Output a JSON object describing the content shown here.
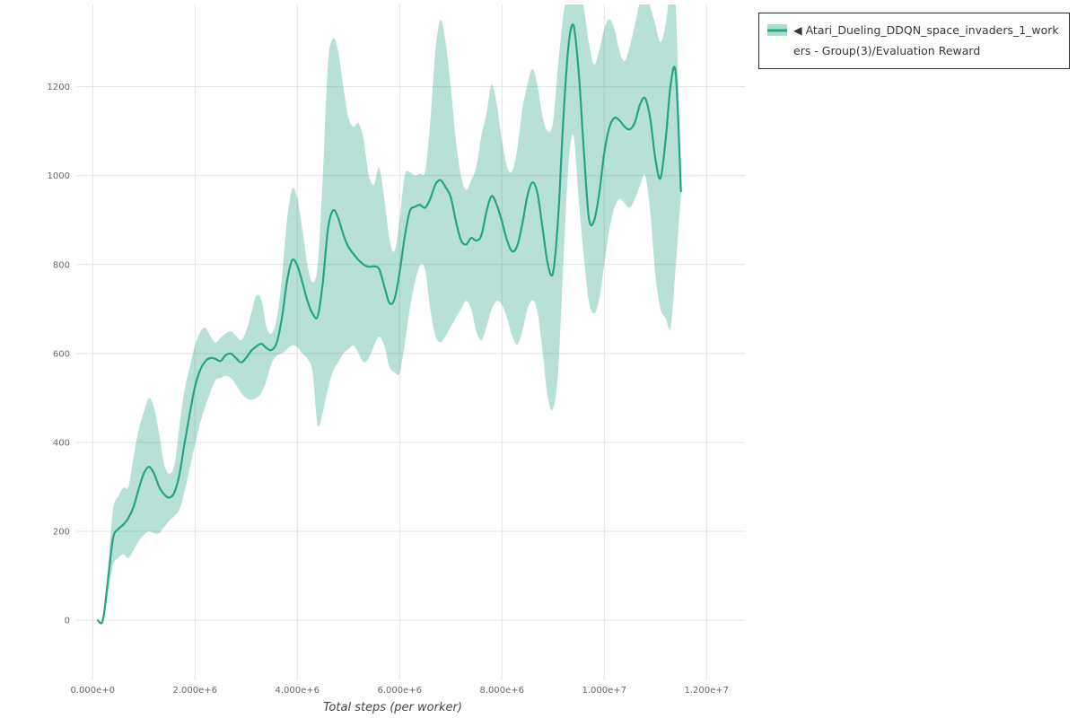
{
  "legend": {
    "label": "◀ Atari_Dueling_DDQN_space_invaders_1_workers - Group(3)/Evaluation Reward"
  },
  "colors": {
    "line": "#23a583",
    "band": "rgba(35,165,131,0.33)",
    "grid": "#e3e3e3",
    "tick_text": "#666666",
    "background": "#ffffff"
  },
  "chart_data": {
    "type": "line",
    "title": "",
    "xlabel": "Total steps (per worker)",
    "ylabel": "",
    "grid": true,
    "legend_position": "top-right",
    "x_unit": 1000000,
    "xlim": [
      -320000,
      12750000
    ],
    "ylim": [
      -135,
      1385
    ],
    "x_ticks": [
      0,
      2000000,
      4000000,
      6000000,
      8000000,
      10000000,
      12000000
    ],
    "x_tick_labels": [
      "0.000e+0",
      "2.000e+6",
      "4.000e+6",
      "6.000e+6",
      "8.000e+6",
      "1.000e+7",
      "1.200e+7"
    ],
    "y_ticks": [
      0,
      200,
      400,
      600,
      800,
      1000,
      1200
    ],
    "series": [
      {
        "name": "◀ Atari_Dueling_DDQN_space_invaders_1_workers - Group(3)/Evaluation Reward",
        "color": "#23a583",
        "band_color": "rgba(35,165,131,0.33)",
        "x_millions": [
          0.1,
          0.2,
          0.3,
          0.4,
          0.5,
          0.6,
          0.7,
          0.8,
          0.9,
          1.0,
          1.1,
          1.2,
          1.3,
          1.4,
          1.5,
          1.6,
          1.7,
          1.8,
          1.9,
          2.0,
          2.1,
          2.2,
          2.3,
          2.4,
          2.5,
          2.6,
          2.7,
          2.8,
          2.9,
          3.0,
          3.1,
          3.2,
          3.3,
          3.4,
          3.5,
          3.6,
          3.7,
          3.8,
          3.9,
          4.0,
          4.1,
          4.2,
          4.3,
          4.4,
          4.5,
          4.6,
          4.7,
          4.8,
          4.9,
          5.0,
          5.1,
          5.2,
          5.3,
          5.4,
          5.5,
          5.6,
          5.7,
          5.8,
          5.9,
          6.0,
          6.1,
          6.2,
          6.3,
          6.4,
          6.5,
          6.6,
          6.7,
          6.8,
          6.9,
          7.0,
          7.1,
          7.2,
          7.3,
          7.4,
          7.5,
          7.6,
          7.7,
          7.8,
          7.9,
          8.0,
          8.1,
          8.2,
          8.3,
          8.4,
          8.5,
          8.6,
          8.7,
          8.8,
          8.9,
          9.0,
          9.1,
          9.2,
          9.3,
          9.4,
          9.5,
          9.6,
          9.7,
          9.8,
          9.9,
          10.0,
          10.1,
          10.2,
          10.3,
          10.4,
          10.5,
          10.6,
          10.7,
          10.8,
          10.9,
          11.0,
          11.1,
          11.2,
          11.3,
          11.4,
          11.5
        ],
        "mean": [
          0,
          0,
          90,
          185,
          205,
          215,
          230,
          255,
          295,
          330,
          345,
          330,
          300,
          283,
          276,
          288,
          330,
          400,
          465,
          525,
          562,
          582,
          590,
          588,
          583,
          596,
          600,
          590,
          580,
          590,
          606,
          616,
          622,
          612,
          608,
          625,
          680,
          762,
          810,
          798,
          760,
          718,
          690,
          684,
          760,
          880,
          922,
          905,
          868,
          840,
          824,
          810,
          800,
          795,
          796,
          790,
          752,
          714,
          722,
          782,
          862,
          920,
          930,
          934,
          928,
          948,
          980,
          990,
          974,
          952,
          898,
          855,
          845,
          860,
          854,
          866,
          920,
          954,
          934,
          898,
          855,
          830,
          842,
          892,
          955,
          985,
          958,
          878,
          800,
          782,
          905,
          1125,
          1290,
          1338,
          1235,
          1060,
          905,
          898,
          958,
          1050,
          1108,
          1130,
          1124,
          1110,
          1104,
          1120,
          1160,
          1174,
          1128,
          1038,
          994,
          1080,
          1205,
          1228,
          965
        ],
        "lower": [
          0,
          0,
          60,
          125,
          140,
          148,
          140,
          158,
          178,
          192,
          200,
          196,
          196,
          210,
          224,
          235,
          250,
          292,
          342,
          395,
          442,
          480,
          512,
          540,
          545,
          550,
          545,
          530,
          512,
          500,
          496,
          500,
          512,
          540,
          578,
          595,
          600,
          610,
          618,
          614,
          600,
          588,
          558,
          440,
          468,
          520,
          560,
          580,
          600,
          610,
          618,
          600,
          580,
          590,
          618,
          638,
          618,
          570,
          558,
          556,
          620,
          700,
          760,
          798,
          788,
          700,
          640,
          625,
          640,
          660,
          680,
          700,
          718,
          700,
          650,
          630,
          660,
          700,
          718,
          710,
          680,
          640,
          620,
          650,
          700,
          720,
          690,
          600,
          500,
          476,
          560,
          800,
          1020,
          1090,
          950,
          820,
          718,
          690,
          720,
          800,
          878,
          928,
          948,
          938,
          928,
          948,
          978,
          1000,
          918,
          778,
          700,
          680,
          660,
          798,
          960
        ],
        "upper": [
          0,
          5,
          120,
          250,
          278,
          298,
          300,
          368,
          428,
          468,
          500,
          478,
          420,
          350,
          330,
          350,
          440,
          520,
          570,
          618,
          648,
          658,
          640,
          625,
          635,
          645,
          650,
          640,
          630,
          650,
          690,
          730,
          720,
          660,
          645,
          680,
          770,
          900,
          970,
          950,
          880,
          800,
          760,
          800,
          1000,
          1250,
          1308,
          1280,
          1200,
          1130,
          1110,
          1118,
          1080,
          1000,
          980,
          1018,
          950,
          860,
          830,
          900,
          1000,
          1008,
          1000,
          1005,
          1010,
          1120,
          1280,
          1350,
          1300,
          1200,
          1080,
          1000,
          968,
          990,
          1020,
          1090,
          1140,
          1205,
          1160,
          1080,
          1020,
          1010,
          1060,
          1150,
          1205,
          1240,
          1200,
          1130,
          1100,
          1120,
          1250,
          1360,
          1420,
          1430,
          1420,
          1380,
          1300,
          1250,
          1280,
          1330,
          1352,
          1330,
          1280,
          1258,
          1290,
          1340,
          1392,
          1420,
          1380,
          1340,
          1300,
          1340,
          1420,
          1380,
          972
        ]
      }
    ]
  }
}
